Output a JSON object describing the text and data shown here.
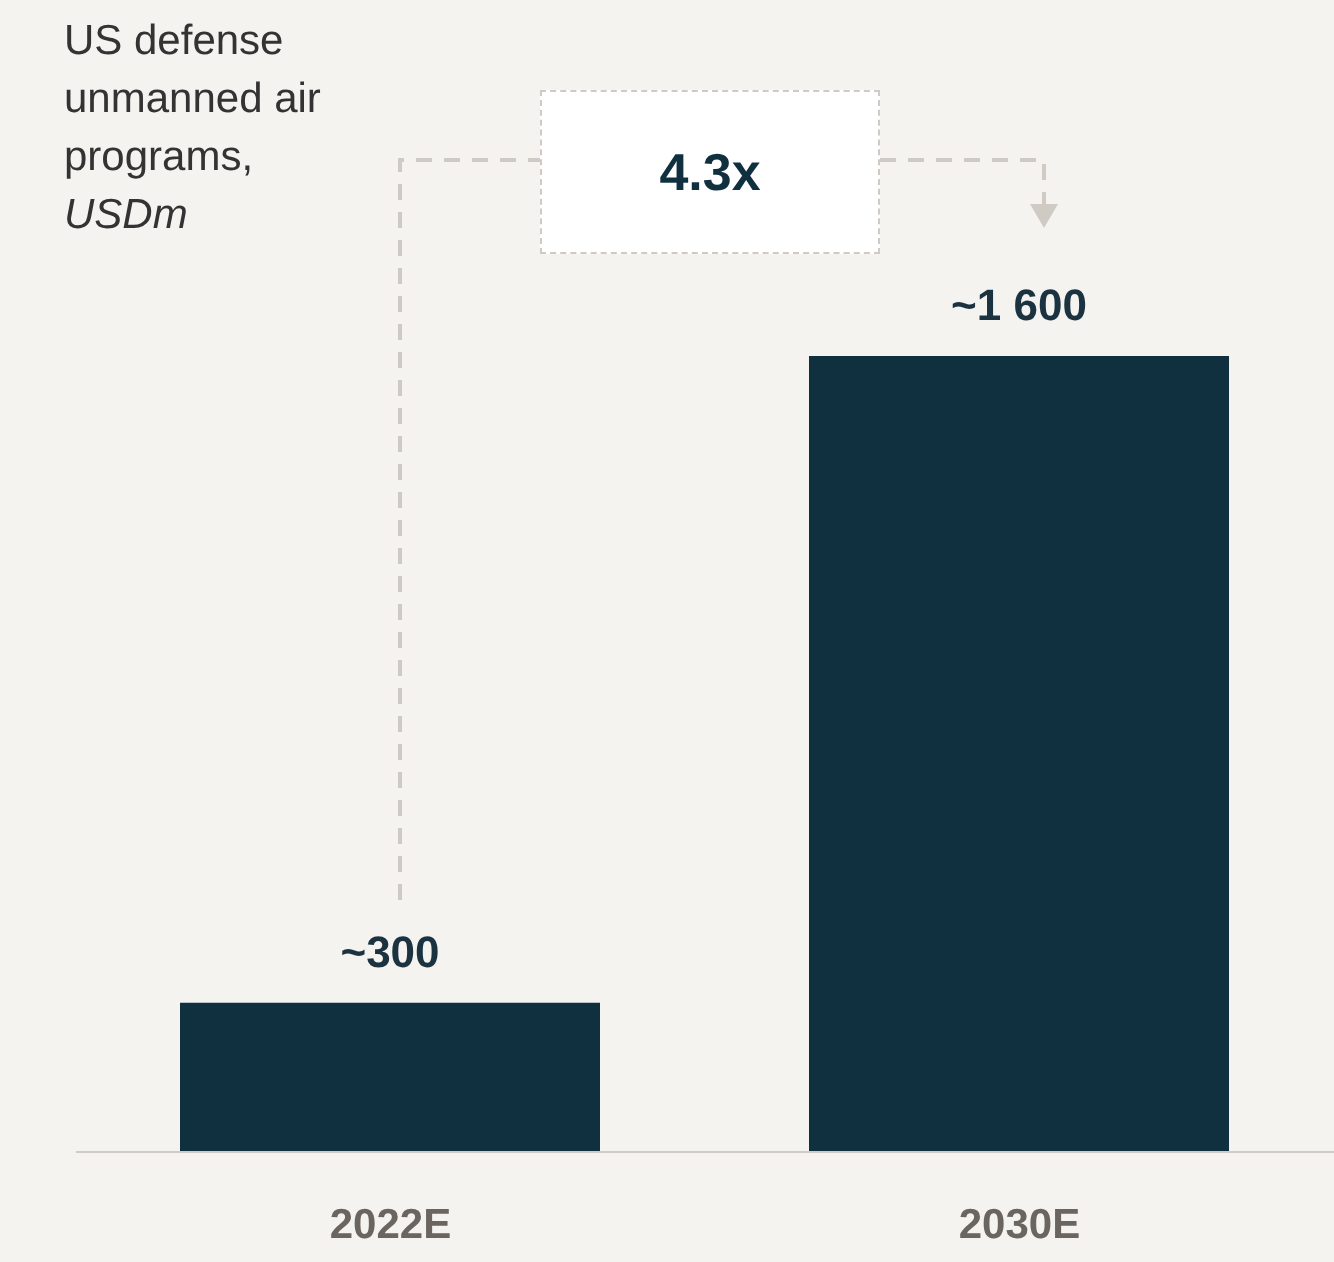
{
  "chart_data": {
    "type": "bar",
    "title": "US defense unmanned air programs,",
    "subtitle": "USDm",
    "categories": [
      "2022E",
      "2030E"
    ],
    "values": [
      300,
      1600
    ],
    "color": "#10303f",
    "value_labels": [
      "~300",
      "~1 600"
    ],
    "annotations": [
      "4.3x"
    ]
  }
}
